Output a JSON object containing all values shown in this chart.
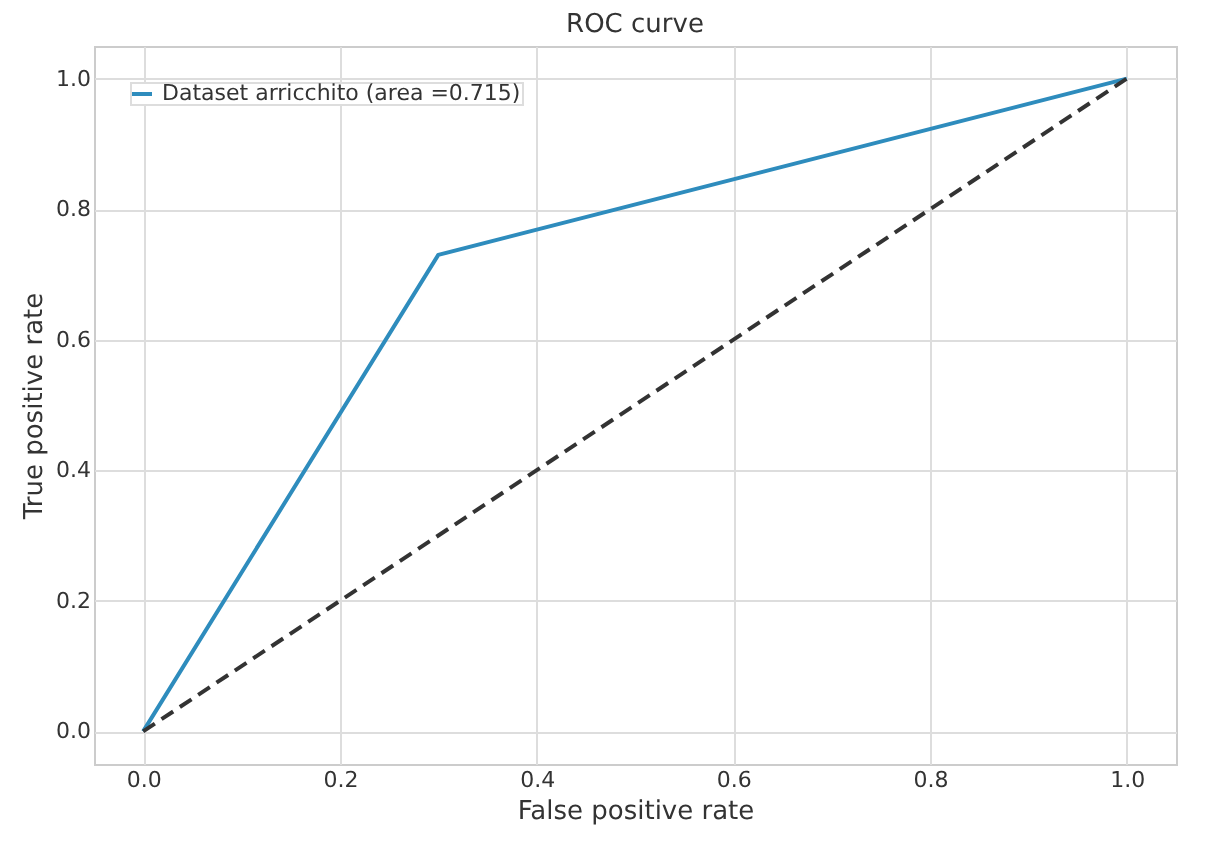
{
  "chart_data": {
    "type": "line",
    "title": "ROC curve",
    "xlabel": "False positive rate",
    "ylabel": "True positive rate",
    "xlim": [
      -0.05,
      1.05
    ],
    "ylim": [
      -0.05,
      1.05
    ],
    "xticks": [
      {
        "value": 0,
        "label": "0.0"
      },
      {
        "value": 0.2,
        "label": "0.2"
      },
      {
        "value": 0.4,
        "label": "0.4"
      },
      {
        "value": 0.6,
        "label": "0.6"
      },
      {
        "value": 0.8,
        "label": "0.8"
      },
      {
        "value": 1,
        "label": "1.0"
      }
    ],
    "yticks": [
      {
        "value": 0,
        "label": "0.0"
      },
      {
        "value": 0.2,
        "label": "0.2"
      },
      {
        "value": 0.4,
        "label": "0.4"
      },
      {
        "value": 0.6,
        "label": "0.6"
      },
      {
        "value": 0.8,
        "label": "0.8"
      },
      {
        "value": 1,
        "label": "1.0"
      }
    ],
    "series": [
      {
        "name": "Dataset arricchito (area =0.715)",
        "color": "#2e8cbd",
        "x": [
          0,
          0.3,
          1
        ],
        "values": [
          0,
          0.73,
          1
        ],
        "line_style": "solid"
      },
      {
        "color": "#333333",
        "x": [
          0,
          1
        ],
        "values": [
          0,
          1
        ],
        "line_style": "dashed"
      }
    ],
    "grid": true,
    "legend": "top left",
    "marker": "none"
  }
}
